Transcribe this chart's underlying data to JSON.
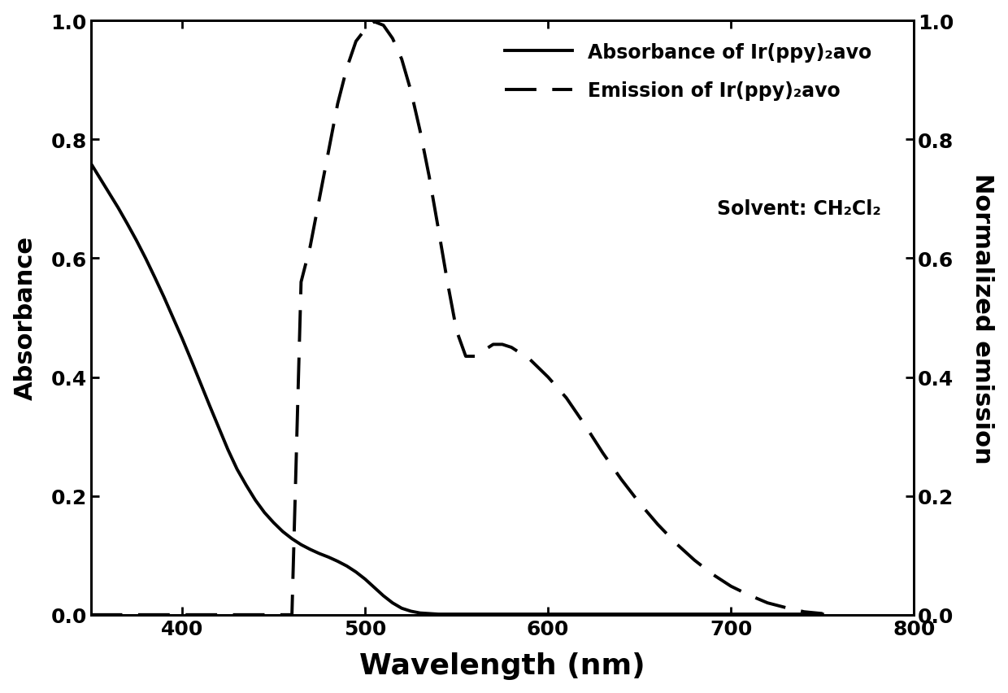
{
  "xlim": [
    350,
    800
  ],
  "ylim": [
    0.0,
    1.0
  ],
  "xlabel": "Wavelength (nm)",
  "ylabel_left": "Absorbance",
  "ylabel_right": "Normalized emission",
  "xticks": [
    400,
    500,
    600,
    700,
    800
  ],
  "yticks": [
    0.0,
    0.2,
    0.4,
    0.6,
    0.8,
    1.0
  ],
  "legend_line1": "Absorbance of Ir(ppy)₂avo",
  "legend_line2": "Emission of Ir(ppy)₂avo",
  "legend_text3": "Solvent: CH₂Cl₂",
  "background_color": "#ffffff",
  "line_color": "#000000",
  "absorbance_x": [
    350,
    355,
    360,
    365,
    370,
    375,
    380,
    385,
    390,
    395,
    400,
    405,
    410,
    415,
    420,
    425,
    430,
    435,
    440,
    445,
    450,
    455,
    460,
    465,
    470,
    475,
    480,
    485,
    490,
    495,
    500,
    505,
    510,
    515,
    520,
    525,
    530,
    535,
    540,
    545,
    550,
    560,
    570,
    580,
    590,
    600,
    610,
    620,
    630,
    640,
    650,
    660,
    670,
    680,
    690,
    700,
    710,
    720,
    730,
    740,
    750
  ],
  "absorbance_y": [
    0.76,
    0.735,
    0.71,
    0.685,
    0.658,
    0.63,
    0.6,
    0.568,
    0.535,
    0.5,
    0.465,
    0.428,
    0.39,
    0.352,
    0.315,
    0.278,
    0.245,
    0.218,
    0.193,
    0.172,
    0.155,
    0.14,
    0.128,
    0.118,
    0.11,
    0.103,
    0.097,
    0.09,
    0.082,
    0.072,
    0.06,
    0.046,
    0.032,
    0.02,
    0.011,
    0.006,
    0.003,
    0.002,
    0.001,
    0.001,
    0.001,
    0.001,
    0.001,
    0.001,
    0.001,
    0.001,
    0.001,
    0.001,
    0.001,
    0.001,
    0.001,
    0.001,
    0.001,
    0.001,
    0.001,
    0.001,
    0.001,
    0.001,
    0.001,
    0.001,
    0.001
  ],
  "emission_x": [
    350,
    355,
    360,
    365,
    370,
    375,
    380,
    385,
    390,
    395,
    400,
    405,
    410,
    415,
    420,
    425,
    430,
    435,
    440,
    445,
    450,
    455,
    460,
    465,
    470,
    475,
    480,
    485,
    490,
    495,
    500,
    505,
    510,
    515,
    520,
    525,
    530,
    535,
    540,
    545,
    550,
    555,
    560,
    565,
    570,
    575,
    580,
    585,
    590,
    595,
    600,
    610,
    620,
    630,
    640,
    650,
    660,
    670,
    680,
    690,
    700,
    710,
    720,
    730,
    740,
    750
  ],
  "emission_y": [
    0.0,
    0.0,
    0.0,
    0.0,
    0.0,
    0.0,
    0.0,
    0.0,
    0.0,
    0.0,
    0.0,
    0.0,
    0.0,
    0.0,
    0.0,
    0.0,
    0.0,
    0.0,
    0.0,
    0.0,
    0.0,
    0.0,
    0.0,
    0.56,
    0.62,
    0.7,
    0.78,
    0.86,
    0.92,
    0.965,
    0.985,
    0.998,
    0.992,
    0.97,
    0.935,
    0.882,
    0.815,
    0.738,
    0.65,
    0.56,
    0.478,
    0.435,
    0.435,
    0.445,
    0.455,
    0.455,
    0.45,
    0.44,
    0.43,
    0.415,
    0.4,
    0.365,
    0.32,
    0.272,
    0.228,
    0.188,
    0.152,
    0.12,
    0.092,
    0.068,
    0.048,
    0.033,
    0.02,
    0.012,
    0.005,
    0.002
  ]
}
